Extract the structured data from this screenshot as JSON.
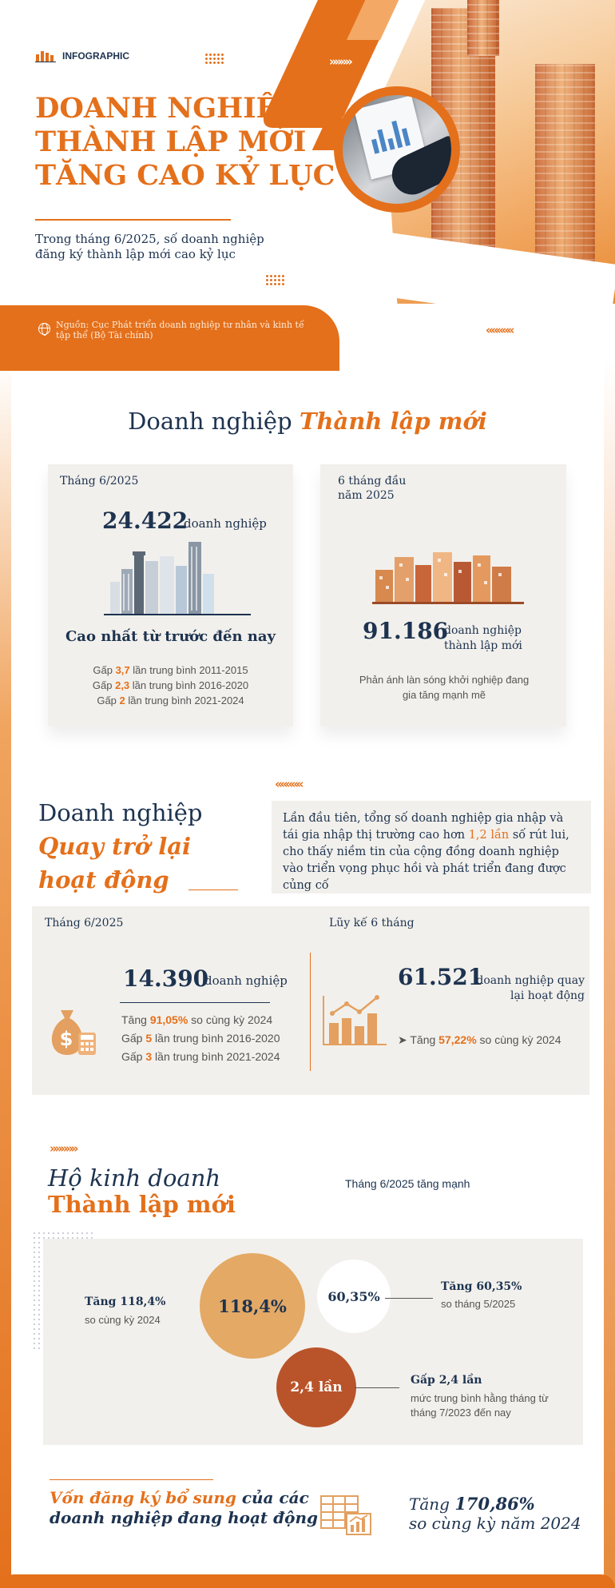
{
  "header": {
    "brand": "INFOGRAPHIC",
    "title_lines": [
      "DOANH NGHIỆP",
      "THÀNH LẬP MỚI",
      "TĂNG CAO KỶ LỤC"
    ],
    "subtitle": "Trong tháng 6/2025, số doanh nghiệp đăng ký thành lập mới cao kỷ lục",
    "source": "Nguồn: Cục Phát triển doanh nghiệp tư nhân và kinh tế tập thể (Bộ Tài chính)",
    "chevrons_right": "»»»»",
    "chevrons_left": "«««««"
  },
  "section1": {
    "title_plain": "Doanh nghiệp",
    "title_emph": "Thành lập mới",
    "card_left": {
      "label": "Tháng 6/2025",
      "value": "24.422",
      "unit": "doanh nghiệp",
      "headline": "Cao nhất từ trước đến nay",
      "lines": [
        {
          "pre": "Gấp ",
          "num": "3,7",
          "post": " lần trung bình 2011-2015"
        },
        {
          "pre": "Gấp ",
          "num": "2,3",
          "post": " lần trung bình 2016-2020"
        },
        {
          "pre": "Gấp ",
          "num": "2",
          "post": " lần trung bình 2021-2024"
        }
      ]
    },
    "card_right": {
      "label": "6 tháng đầu năm 2025",
      "value": "91.186",
      "unit": "doanh nghiệp thành lập mới",
      "note": "Phản ánh làn sóng khởi nghiệp đang gia tăng mạnh mẽ"
    }
  },
  "section2": {
    "chevrons": "«««««",
    "title_l1": "Doanh nghiệp",
    "title_l2": "Quay trở lại",
    "title_l3": "hoạt động",
    "note_pre": "Lần đầu tiên, tổng số doanh nghiệp gia nhập và tái gia nhập thị trường cao hơn ",
    "note_num": "1,2 lần",
    "note_post": " số rút lui, cho thấy niềm tin của cộng đồng doanh nghiệp vào triển vọng phục hồi và phát triển đang được củng cố",
    "left": {
      "label": "Tháng 6/2025",
      "value": "14.390",
      "unit": "doanh nghiệp",
      "lines": [
        {
          "pre": "Tăng ",
          "num": "91,05%",
          "post": " so cùng kỳ 2024"
        },
        {
          "pre": "Gấp ",
          "num": "5",
          "post": " lần trung bình 2016-2020"
        },
        {
          "pre": "Gấp ",
          "num": "3",
          "post": " lần trung bình 2021-2024"
        }
      ]
    },
    "right": {
      "label": "Lũy kế 6 tháng",
      "value": "61.521",
      "unit": "doanh nghiệp quay lại hoạt động",
      "line": {
        "pre": "➤ Tăng ",
        "num": "57,22%",
        "post": " so cùng kỳ 2024"
      }
    }
  },
  "section3": {
    "chevrons": "»»»»»",
    "title_l1": "Hộ kinh doanh",
    "title_l2": "Thành lập mới",
    "subtitle": "Tháng 6/2025 tăng mạnh",
    "c1": {
      "value": "118,4%",
      "label": "Tăng 118,4%",
      "note": "so cùng kỳ 2024"
    },
    "c2": {
      "value": "60,35%",
      "label": "Tăng 60,35%",
      "note": "so tháng 5/2025"
    },
    "c3": {
      "value": "2,4 lần",
      "label": "Gấp 2,4 lần",
      "note": "mức trung bình hằng tháng từ tháng 7/2023 đến nay"
    }
  },
  "footer": {
    "left_o": "Vốn đăng ký bổ sung",
    "left_n1": " của các",
    "left_n2": "doanh nghiệp đang hoạt động",
    "right_pre": "Tăng ",
    "right_num": "170,86%",
    "right_l2": "so cùng kỳ năm 2024"
  },
  "colors": {
    "accent": "#e4701b",
    "navy": "#1d3350",
    "panel": "#f2f0ec"
  },
  "icons": [
    "building-logo-icon",
    "globe-icon",
    "city-buildings-icon",
    "money-bag-icon",
    "bar-chart-icon",
    "spreadsheet-chart-icon"
  ]
}
